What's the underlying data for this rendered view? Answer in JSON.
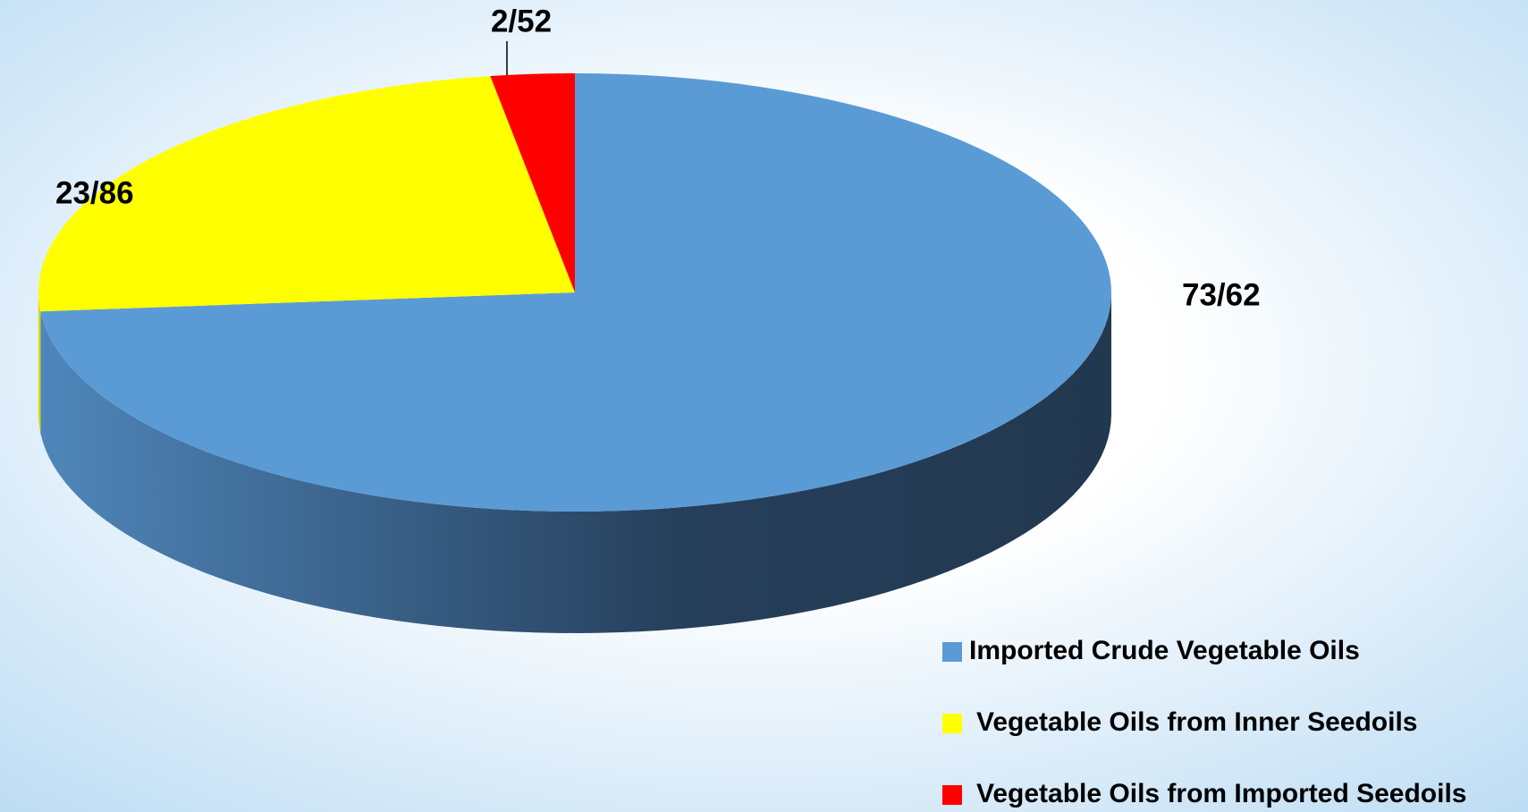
{
  "chart_data": {
    "type": "pie",
    "categories": [
      "Imported Crude Vegetable Oils",
      "Vegetable Oils from Inner Seedoils",
      "Vegetable Oils from Imported Seedoils"
    ],
    "values": [
      73.62,
      23.86,
      2.52
    ],
    "value_labels": [
      "73/62",
      "23/86",
      "2/52"
    ],
    "colors": [
      "#5b9bd5",
      "#ffff00",
      "#ff0000"
    ],
    "legend": "bottom-right"
  }
}
